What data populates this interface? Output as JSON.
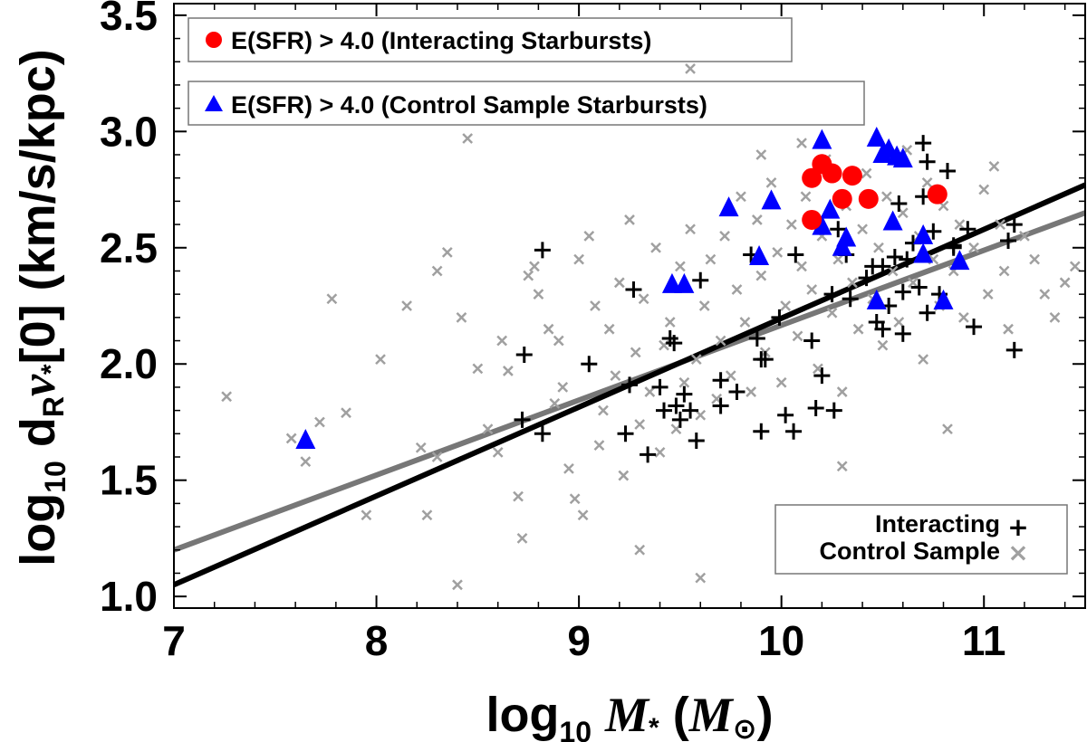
{
  "chart_data": {
    "type": "scatter",
    "xlabel": {
      "prefix": "log",
      "sub": "10",
      "var": "M",
      "varsub": "*",
      "unit_open": "(",
      "unit": "M",
      "unit_sym": "⊙",
      "unit_close": ")"
    },
    "ylabel": {
      "prefix": "log",
      "sub": "10",
      "mid": " d",
      "msub": "R",
      "nu": "ν",
      "nusub": "*",
      "rest": "[0] (km/s/kpc)"
    },
    "xlim": [
      7.0,
      11.5
    ],
    "ylim": [
      0.95,
      3.55
    ],
    "xticks": [
      7,
      8,
      9,
      10,
      11
    ],
    "xtick_labels": [
      "7",
      "8",
      "9",
      "10",
      "11"
    ],
    "yticks": [
      1.0,
      1.5,
      2.0,
      2.5,
      3.0,
      3.5
    ],
    "ytick_labels": [
      "1.0",
      "1.5",
      "2.0",
      "2.5",
      "3.0",
      "3.5"
    ],
    "colors": {
      "interacting_starbursts": "#ff0000",
      "control_starbursts": "#0000ff",
      "interacting": "#000000",
      "control": "#a0a0a0",
      "fit_interacting": "#000000",
      "fit_control": "#777777"
    },
    "legends": {
      "interacting_starbursts": "E(SFR) > 4.0 (Interacting Starbursts)",
      "control_starbursts": "E(SFR) > 4.0 (Control Sample Starbursts)",
      "interacting": "Interacting",
      "control": "Control Sample",
      "interacting_marker": "+",
      "control_marker": "×"
    },
    "fits": [
      {
        "name": "Interacting fit",
        "x": [
          7.0,
          11.5
        ],
        "y": [
          1.05,
          2.77
        ]
      },
      {
        "name": "Control fit",
        "x": [
          7.0,
          11.5
        ],
        "y": [
          1.2,
          2.65
        ]
      }
    ],
    "series": [
      {
        "name": "Interacting Starbursts (E(SFR) > 4.0)",
        "marker": "circle",
        "points": [
          [
            10.15,
            2.8
          ],
          [
            10.2,
            2.86
          ],
          [
            10.25,
            2.82
          ],
          [
            10.3,
            2.71
          ],
          [
            10.35,
            2.81
          ],
          [
            10.43,
            2.71
          ],
          [
            10.15,
            2.62
          ],
          [
            10.77,
            2.73
          ]
        ]
      },
      {
        "name": "Control Sample Starbursts (E(SFR) > 4.0)",
        "marker": "triangle",
        "points": [
          [
            7.65,
            1.67
          ],
          [
            9.46,
            2.34
          ],
          [
            9.52,
            2.34
          ],
          [
            9.74,
            2.67
          ],
          [
            9.89,
            2.46
          ],
          [
            9.95,
            2.7
          ],
          [
            10.2,
            2.96
          ],
          [
            10.2,
            2.59
          ],
          [
            10.24,
            2.66
          ],
          [
            10.3,
            2.5
          ],
          [
            10.32,
            2.54
          ],
          [
            10.47,
            2.97
          ],
          [
            10.5,
            2.9
          ],
          [
            10.53,
            2.92
          ],
          [
            10.55,
            2.61
          ],
          [
            10.57,
            2.89
          ],
          [
            10.6,
            2.88
          ],
          [
            10.47,
            2.27
          ],
          [
            10.7,
            2.47
          ],
          [
            10.7,
            2.55
          ],
          [
            10.8,
            2.27
          ],
          [
            10.88,
            2.44
          ]
        ]
      },
      {
        "name": "Interacting",
        "marker": "plus",
        "points": [
          [
            8.72,
            1.76
          ],
          [
            8.73,
            2.04
          ],
          [
            8.82,
            1.7
          ],
          [
            8.82,
            2.49
          ],
          [
            9.05,
            2.0
          ],
          [
            9.23,
            1.7
          ],
          [
            9.25,
            1.91
          ],
          [
            9.27,
            2.32
          ],
          [
            9.34,
            1.61
          ],
          [
            9.4,
            1.9
          ],
          [
            9.42,
            1.8
          ],
          [
            9.45,
            2.11
          ],
          [
            9.47,
            2.09
          ],
          [
            9.48,
            1.82
          ],
          [
            9.5,
            1.76
          ],
          [
            9.52,
            1.87
          ],
          [
            9.55,
            1.8
          ],
          [
            9.58,
            1.67
          ],
          [
            9.6,
            2.36
          ],
          [
            9.7,
            1.82
          ],
          [
            9.7,
            1.93
          ],
          [
            9.78,
            1.88
          ],
          [
            9.85,
            2.47
          ],
          [
            9.88,
            2.11
          ],
          [
            9.9,
            2.02
          ],
          [
            9.9,
            1.71
          ],
          [
            9.92,
            2.02
          ],
          [
            10.02,
            1.78
          ],
          [
            10.06,
            1.71
          ],
          [
            10.07,
            2.47
          ],
          [
            10.15,
            2.1
          ],
          [
            10.17,
            1.81
          ],
          [
            10.2,
            1.95
          ],
          [
            10.26,
            1.8
          ],
          [
            10.28,
            2.58
          ],
          [
            10.32,
            2.47
          ],
          [
            10.34,
            2.28
          ],
          [
            10.45,
            2.42
          ],
          [
            10.47,
            2.18
          ],
          [
            10.5,
            2.15
          ],
          [
            10.53,
            2.25
          ],
          [
            10.56,
            2.46
          ],
          [
            10.58,
            2.69
          ],
          [
            10.6,
            2.31
          ],
          [
            10.6,
            2.13
          ],
          [
            10.62,
            2.45
          ],
          [
            10.65,
            2.52
          ],
          [
            10.68,
            2.33
          ],
          [
            10.7,
            2.95
          ],
          [
            10.72,
            2.87
          ],
          [
            10.72,
            2.22
          ],
          [
            10.75,
            2.57
          ],
          [
            10.78,
            2.3
          ],
          [
            10.82,
            2.83
          ],
          [
            10.85,
            2.51
          ],
          [
            10.92,
            2.58
          ],
          [
            10.95,
            2.16
          ],
          [
            11.12,
            2.53
          ],
          [
            11.15,
            2.6
          ],
          [
            11.15,
            2.06
          ],
          [
            10.42,
            2.37
          ],
          [
            10.5,
            2.42
          ],
          [
            10.7,
            2.72
          ],
          [
            10.85,
            2.5
          ],
          [
            10.25,
            2.3
          ],
          [
            9.99,
            2.2
          ]
        ]
      },
      {
        "name": "Control Sample",
        "marker": "cross",
        "points": [
          [
            7.26,
            1.86
          ],
          [
            7.58,
            1.68
          ],
          [
            7.65,
            1.58
          ],
          [
            7.72,
            1.75
          ],
          [
            7.78,
            2.28
          ],
          [
            7.85,
            1.79
          ],
          [
            7.95,
            1.35
          ],
          [
            8.02,
            2.02
          ],
          [
            8.15,
            2.25
          ],
          [
            8.22,
            1.64
          ],
          [
            8.25,
            1.35
          ],
          [
            8.3,
            2.4
          ],
          [
            8.3,
            1.6
          ],
          [
            8.35,
            2.48
          ],
          [
            8.4,
            1.05
          ],
          [
            8.42,
            2.2
          ],
          [
            8.45,
            2.97
          ],
          [
            8.5,
            1.98
          ],
          [
            8.55,
            1.72
          ],
          [
            8.6,
            1.62
          ],
          [
            8.62,
            2.1
          ],
          [
            8.65,
            1.97
          ],
          [
            8.7,
            1.43
          ],
          [
            8.72,
            1.25
          ],
          [
            8.75,
            2.38
          ],
          [
            8.78,
            2.42
          ],
          [
            8.8,
            2.3
          ],
          [
            8.85,
            2.15
          ],
          [
            8.88,
            1.83
          ],
          [
            8.9,
            2.1
          ],
          [
            8.92,
            1.9
          ],
          [
            8.95,
            1.55
          ],
          [
            8.98,
            1.42
          ],
          [
            9.0,
            2.45
          ],
          [
            9.02,
            1.35
          ],
          [
            9.05,
            2.55
          ],
          [
            9.08,
            2.25
          ],
          [
            9.1,
            1.65
          ],
          [
            9.12,
            1.8
          ],
          [
            9.15,
            2.15
          ],
          [
            9.18,
            1.95
          ],
          [
            9.2,
            2.35
          ],
          [
            9.22,
            1.52
          ],
          [
            9.25,
            2.62
          ],
          [
            9.28,
            2.05
          ],
          [
            9.3,
            1.74
          ],
          [
            9.32,
            2.28
          ],
          [
            9.35,
            1.88
          ],
          [
            9.38,
            2.5
          ],
          [
            9.4,
            1.62
          ],
          [
            9.42,
            2.08
          ],
          [
            9.45,
            2.18
          ],
          [
            9.48,
            1.72
          ],
          [
            9.5,
            2.42
          ],
          [
            9.52,
            1.92
          ],
          [
            9.55,
            2.58
          ],
          [
            9.58,
            2.02
          ],
          [
            9.6,
            1.78
          ],
          [
            9.62,
            2.25
          ],
          [
            9.65,
            2.45
          ],
          [
            9.68,
            1.85
          ],
          [
            9.7,
            2.1
          ],
          [
            9.72,
            2.55
          ],
          [
            9.75,
            1.95
          ],
          [
            9.78,
            2.32
          ],
          [
            9.8,
            2.72
          ],
          [
            9.82,
            2.18
          ],
          [
            9.85,
            1.88
          ],
          [
            9.88,
            2.62
          ],
          [
            9.9,
            2.38
          ],
          [
            9.92,
            2.05
          ],
          [
            9.95,
            2.78
          ],
          [
            9.98,
            2.48
          ],
          [
            10.0,
            1.92
          ],
          [
            10.02,
            2.25
          ],
          [
            10.05,
            2.6
          ],
          [
            10.08,
            2.12
          ],
          [
            10.1,
            2.42
          ],
          [
            10.12,
            2.72
          ],
          [
            10.15,
            2.32
          ],
          [
            10.18,
            1.98
          ],
          [
            10.2,
            2.55
          ],
          [
            10.22,
            2.88
          ],
          [
            10.25,
            2.22
          ],
          [
            10.28,
            2.45
          ],
          [
            10.3,
            1.88
          ],
          [
            10.32,
            2.68
          ],
          [
            10.35,
            2.35
          ],
          [
            10.38,
            2.15
          ],
          [
            10.4,
            2.58
          ],
          [
            10.42,
            2.82
          ],
          [
            10.45,
            2.28
          ],
          [
            10.48,
            2.5
          ],
          [
            10.5,
            2.08
          ],
          [
            10.52,
            2.72
          ],
          [
            10.55,
            2.4
          ],
          [
            10.58,
            2.18
          ],
          [
            10.6,
            2.65
          ],
          [
            10.62,
            2.92
          ],
          [
            10.65,
            2.35
          ],
          [
            10.68,
            2.55
          ],
          [
            10.7,
            2.02
          ],
          [
            10.72,
            2.78
          ],
          [
            10.75,
            2.45
          ],
          [
            10.78,
            2.25
          ],
          [
            10.8,
            2.68
          ],
          [
            10.82,
            1.72
          ],
          [
            10.85,
            2.4
          ],
          [
            10.88,
            2.6
          ],
          [
            10.9,
            2.2
          ],
          [
            10.95,
            2.5
          ],
          [
            11.0,
            2.75
          ],
          [
            11.02,
            2.3
          ],
          [
            11.05,
            2.85
          ],
          [
            11.08,
            2.6
          ],
          [
            11.1,
            2.4
          ],
          [
            11.12,
            2.15
          ],
          [
            11.2,
            2.55
          ],
          [
            11.25,
            2.45
          ],
          [
            11.3,
            2.3
          ],
          [
            11.35,
            2.2
          ],
          [
            11.4,
            2.35
          ],
          [
            11.45,
            2.42
          ],
          [
            9.55,
            3.27
          ],
          [
            10.35,
            3.1
          ],
          [
            9.3,
            1.2
          ],
          [
            9.6,
            1.08
          ],
          [
            10.3,
            1.56
          ],
          [
            9.9,
            2.9
          ],
          [
            10.1,
            2.95
          ]
        ]
      }
    ]
  }
}
